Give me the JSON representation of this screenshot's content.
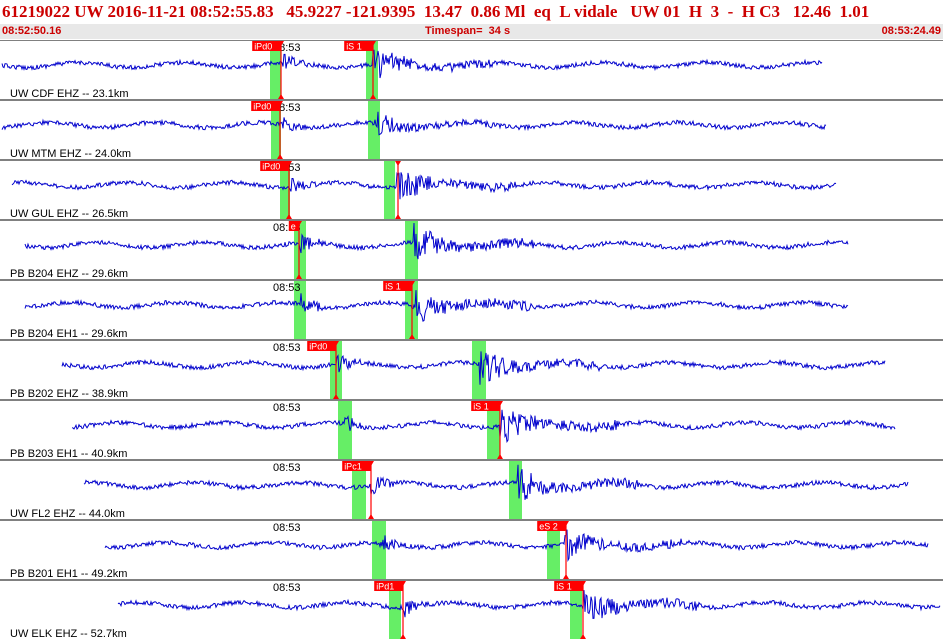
{
  "header": {
    "title": "61219022 UW 2016-11-21 08:52:55.83   45.9227 -121.9395  13.47  0.86 Ml  eq  L vidale   UW 01  H  3  -  H C3   12.46  1.01",
    "start_time": "08:52:50.16",
    "timespan": "Timespan=  34 s",
    "end_time": "08:53:24.49"
  },
  "colors": {
    "trace": "#0000cc",
    "pick": "#ff0000",
    "window": "#66ee66",
    "divider": "#000000",
    "label": "#000000"
  },
  "minute_mark": "08:53",
  "channels": [
    {
      "label": "UW CDF EHZ -- 23.1km",
      "s_start": 2,
      "s_end": 822,
      "p_pick": 281,
      "p_label": "iPd0",
      "s_pick": 373,
      "s_label": "iS 1",
      "p_win": [
        270,
        281
      ],
      "s_win": [
        366,
        378
      ],
      "onset_p": 283,
      "onset_s": 373,
      "amp": 0.9
    },
    {
      "label": "UW MTM EHZ -- 24.0km",
      "s_start": 2,
      "s_end": 826,
      "p_pick": 280,
      "p_label": "iPd0",
      "s_pick": null,
      "s_label": "",
      "p_win": [
        271,
        281
      ],
      "s_win": [
        368,
        380
      ],
      "onset_p": 283,
      "onset_s": 374,
      "amp": 0.7
    },
    {
      "label": "UW GUL EHZ -- 26.5km",
      "s_start": 12,
      "s_end": 836,
      "p_pick": 289,
      "p_label": "iPd0",
      "s_pick": 398,
      "s_label": "",
      "p_win": [
        280,
        290
      ],
      "s_win": [
        384,
        395
      ],
      "onset_p": 291,
      "onset_s": 397,
      "amp": 0.9
    },
    {
      "label": "PB B204 EHZ -- 29.6km",
      "s_start": 25,
      "s_end": 848,
      "p_pick": 299,
      "p_label": "e",
      "s_pick": null,
      "s_label": "",
      "p_win": [
        294,
        306
      ],
      "s_win": [
        405,
        418
      ],
      "onset_p": 300,
      "onset_s": 414,
      "amp": 1.0
    },
    {
      "label": "PB B204 EH1 -- 29.6km",
      "s_start": 25,
      "s_end": 848,
      "p_pick": null,
      "p_label": "",
      "s_pick": 412,
      "s_label": "iS 1",
      "p_win": [
        294,
        306
      ],
      "s_win": [
        405,
        418
      ],
      "onset_p": 301,
      "onset_s": 412,
      "amp": 1.0
    },
    {
      "label": "PB B202 EHZ -- 38.9km",
      "s_start": 62,
      "s_end": 885,
      "p_pick": 336,
      "p_label": "iPd0",
      "s_pick": null,
      "s_label": "",
      "p_win": [
        330,
        342
      ],
      "s_win": [
        472,
        486
      ],
      "onset_p": 337,
      "onset_s": 480,
      "amp": 1.0
    },
    {
      "label": "PB B203 EH1 -- 40.9km",
      "s_start": 72,
      "s_end": 895,
      "p_pick": null,
      "p_label": "",
      "s_pick": 500,
      "s_label": "iS 1",
      "p_win": [
        338,
        352
      ],
      "s_win": [
        487,
        500
      ],
      "onset_p": 345,
      "onset_s": 500,
      "amp": 1.0
    },
    {
      "label": "UW FL2 EHZ -- 44.0km",
      "s_start": 84,
      "s_end": 908,
      "p_pick": 371,
      "p_label": "iPc1",
      "s_pick": null,
      "s_label": "",
      "p_win": [
        352,
        366
      ],
      "s_win": [
        509,
        522
      ],
      "onset_p": 371,
      "onset_s": 518,
      "amp": 1.0
    },
    {
      "label": "PB B201 EH1 -- 49.2km",
      "s_start": 105,
      "s_end": 928,
      "p_pick": null,
      "p_label": "",
      "s_pick": 566,
      "s_label": "eS 2",
      "p_win": [
        372,
        386
      ],
      "s_win": [
        547,
        560
      ],
      "onset_p": 380,
      "onset_s": 565,
      "amp": 0.9
    },
    {
      "label": "UW ELK EHZ -- 52.7km",
      "s_start": 118,
      "s_end": 940,
      "p_pick": 403,
      "p_label": "iPd1",
      "s_pick": 583,
      "s_label": "iS 1",
      "p_win": [
        389,
        401
      ],
      "s_win": [
        570,
        582
      ],
      "onset_p": 403,
      "onset_s": 583,
      "amp": 1.0
    }
  ]
}
